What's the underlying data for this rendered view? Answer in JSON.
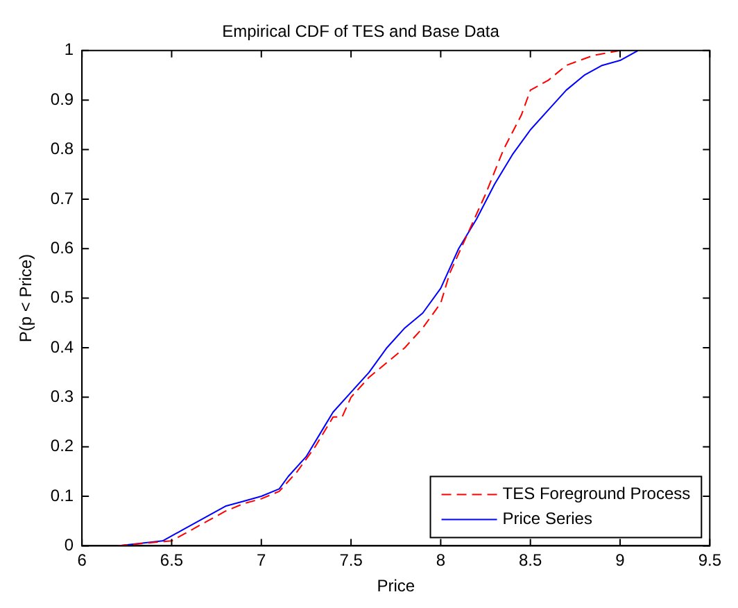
{
  "chart_data": {
    "type": "line",
    "title": "Empirical CDF of TES and Base Data",
    "xlabel": "Price",
    "ylabel": "P(p < Price)",
    "xlim": [
      6,
      9.5
    ],
    "xticks": [
      6,
      6.5,
      7,
      7.5,
      8,
      8.5,
      9,
      9.5
    ],
    "ylim": [
      0,
      1
    ],
    "yticks": [
      0,
      0.1,
      0.2,
      0.3,
      0.4,
      0.5,
      0.6,
      0.7,
      0.8,
      0.9,
      1
    ],
    "grid": false,
    "legend": "bottom right",
    "marker": "none",
    "series": [
      {
        "name": "TES Foreground Process",
        "color": "#ff0000",
        "line_style": "dashed",
        "x": [
          6.2,
          6.5,
          6.6,
          6.7,
          6.8,
          6.9,
          7.0,
          7.1,
          7.2,
          7.3,
          7.4,
          7.45,
          7.5,
          7.6,
          7.7,
          7.8,
          7.9,
          8.0,
          8.05,
          8.15,
          8.25,
          8.35,
          8.45,
          8.5,
          8.6,
          8.7,
          8.85,
          9.0
        ],
        "values": [
          0,
          0.01,
          0.03,
          0.05,
          0.07,
          0.085,
          0.095,
          0.11,
          0.15,
          0.2,
          0.26,
          0.26,
          0.3,
          0.34,
          0.37,
          0.4,
          0.44,
          0.49,
          0.55,
          0.63,
          0.71,
          0.8,
          0.87,
          0.92,
          0.94,
          0.97,
          0.99,
          1
        ]
      },
      {
        "name": "Price Series",
        "color": "#0000ff",
        "line_style": "solid",
        "x": [
          6.2,
          6.45,
          6.5,
          6.6,
          6.7,
          6.8,
          6.9,
          7.0,
          7.1,
          7.15,
          7.25,
          7.35,
          7.4,
          7.5,
          7.6,
          7.7,
          7.8,
          7.9,
          8.0,
          8.1,
          8.2,
          8.3,
          8.4,
          8.5,
          8.6,
          8.7,
          8.8,
          8.9,
          9.0,
          9.1
        ],
        "values": [
          0,
          0.01,
          0.02,
          0.04,
          0.06,
          0.08,
          0.09,
          0.1,
          0.115,
          0.14,
          0.18,
          0.24,
          0.27,
          0.31,
          0.35,
          0.4,
          0.44,
          0.47,
          0.52,
          0.6,
          0.66,
          0.73,
          0.79,
          0.84,
          0.88,
          0.92,
          0.95,
          0.97,
          0.98,
          1
        ]
      }
    ]
  }
}
